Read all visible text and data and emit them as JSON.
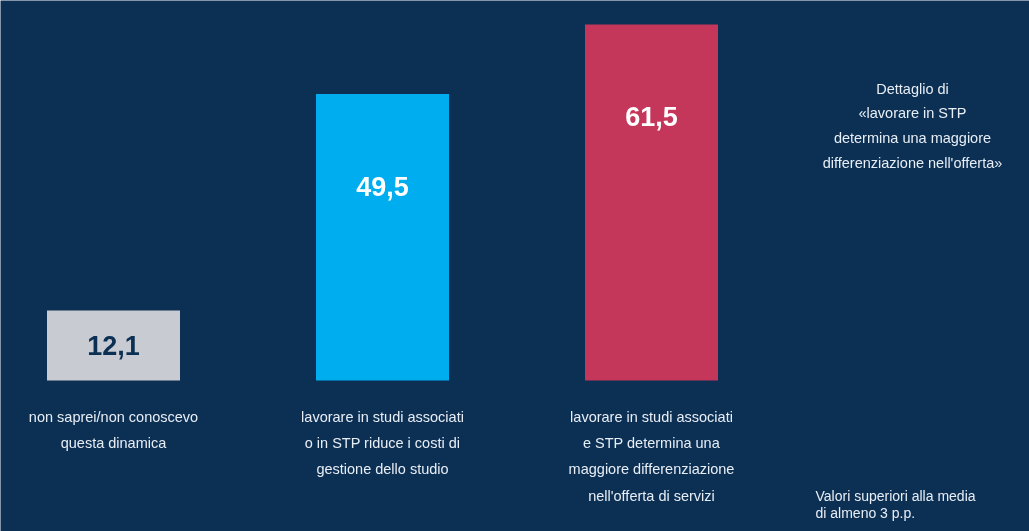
{
  "chart_data": {
    "type": "bar",
    "categories": [
      "non saprei/non conoscevo\nquesta dinamica",
      "lavorare in studi associati\no in STP riduce i costi di\ngestione dello studio",
      "lavorare in studi associati\ne STP determina una\nmaggiore differenziazione\nnell'offerta di servizi"
    ],
    "values": [
      12.1,
      49.5,
      61.5
    ],
    "colors": [
      "#c8ccd2",
      "#00aeef",
      "#c4375a"
    ],
    "value_labels": [
      "12,1",
      "49,5",
      "61,5"
    ],
    "annotations": [
      "Dettaglio di\n«lavorare in STP\ndetermina una maggiore\ndifferenziazione nell'offerta»",
      "Valori superiori alla media\ndi almeno 3 p.p."
    ]
  }
}
